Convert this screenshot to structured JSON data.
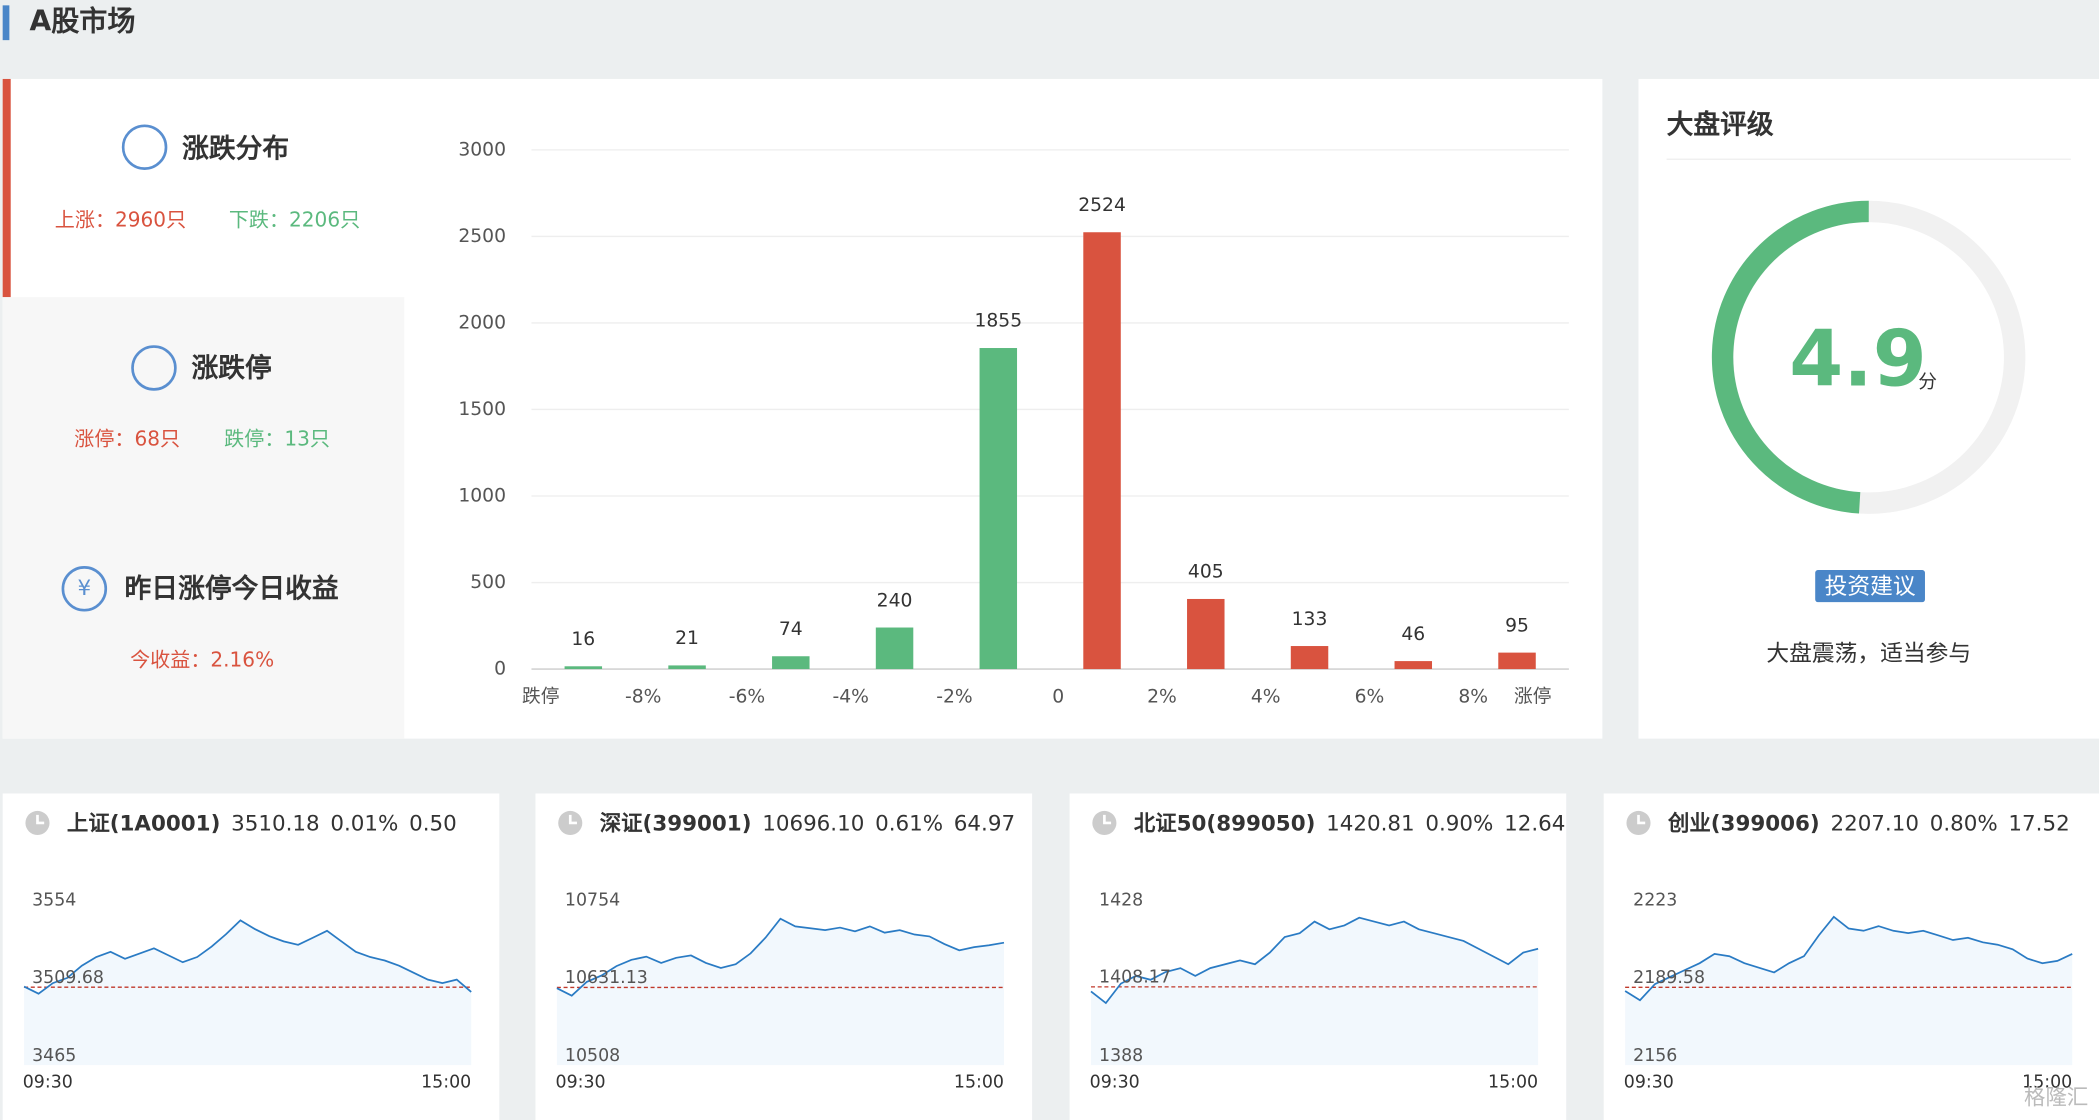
{
  "header": {
    "title": "A股市场"
  },
  "stats": [
    {
      "title": "涨跌分布",
      "items": [
        "上涨：2960只",
        "下跌：2206只"
      ]
    },
    {
      "title": "涨跌停",
      "items": [
        "涨停：68只",
        "跌停：13只"
      ]
    },
    {
      "title": "昨日涨停今日收益",
      "items": [
        "今收益：2.16%"
      ]
    }
  ],
  "chart_data": [
    {
      "type": "histogram",
      "bins": [
        "跌停",
        "-8%",
        "-6%",
        "-4%",
        "-2%",
        "0",
        "2%",
        "4%",
        "6%",
        "8%",
        "涨停"
      ],
      "values": [
        16,
        21,
        74,
        240,
        1855,
        2524,
        405,
        133,
        46,
        95
      ],
      "colors": [
        "#5bb97e",
        "#5bb97e",
        "#5bb97e",
        "#5bb97e",
        "#5bb97e",
        "#d9533f",
        "#d9533f",
        "#d9533f",
        "#d9533f",
        "#d9533f"
      ],
      "ylim": [
        0,
        3000
      ],
      "yticks": [
        0,
        500,
        1000,
        1500,
        2000,
        2500,
        3000
      ],
      "grid": true
    },
    {
      "type": "line",
      "title": "上证(1A0001)",
      "price": "3510.18",
      "pct": "0.01%",
      "change": "0.50",
      "x_labels": [
        "09:30",
        "15:00"
      ],
      "ylim": [
        3465,
        3554
      ],
      "yticks": [
        3465,
        3509.68,
        3554
      ],
      "baseline": 3509.68,
      "color": "#2a7bc4",
      "values": [
        3510,
        3506,
        3512,
        3515,
        3522,
        3527,
        3530,
        3526,
        3529,
        3532,
        3528,
        3524,
        3527,
        3533,
        3540,
        3548,
        3543,
        3539,
        3536,
        3534,
        3538,
        3542,
        3536,
        3530,
        3527,
        3525,
        3522,
        3518,
        3514,
        3512,
        3514,
        3507
      ]
    },
    {
      "type": "line",
      "title": "深证(399001)",
      "price": "10696.10",
      "pct": "0.61%",
      "change": "64.97",
      "x_labels": [
        "09:30",
        "15:00"
      ],
      "ylim": [
        10508,
        10754
      ],
      "yticks": [
        10508,
        10631.13,
        10754
      ],
      "baseline": 10631.13,
      "color": "#2a7bc4",
      "values": [
        10630,
        10618,
        10640,
        10650,
        10665,
        10675,
        10680,
        10670,
        10678,
        10682,
        10670,
        10662,
        10668,
        10685,
        10710,
        10740,
        10728,
        10725,
        10722,
        10726,
        10720,
        10728,
        10718,
        10722,
        10715,
        10712,
        10700,
        10690,
        10695,
        10698,
        10702
      ]
    },
    {
      "type": "line",
      "title": "北证50(899050)",
      "price": "1420.81",
      "pct": "0.90%",
      "change": "12.64",
      "x_labels": [
        "09:30",
        "15:00"
      ],
      "ylim": [
        1388,
        1428
      ],
      "yticks": [
        1388,
        1408.17,
        1428
      ],
      "baseline": 1408.17,
      "color": "#2a7bc4",
      "values": [
        1407,
        1404,
        1409,
        1411,
        1410,
        1412,
        1413,
        1411,
        1413,
        1414,
        1415,
        1414,
        1417,
        1421,
        1422,
        1425,
        1423,
        1424,
        1426,
        1425,
        1424,
        1425,
        1423,
        1422,
        1421,
        1420,
        1418,
        1416,
        1414,
        1417,
        1418
      ]
    },
    {
      "type": "line",
      "title": "创业(399006)",
      "price": "2207.10",
      "pct": "0.80%",
      "change": "17.52",
      "x_labels": [
        "09:30",
        "15:00"
      ],
      "ylim": [
        2156,
        2223
      ],
      "yticks": [
        2156,
        2189.58,
        2223
      ],
      "baseline": 2189.58,
      "color": "#2a7bc4",
      "values": [
        2188,
        2184,
        2191,
        2194,
        2197,
        2200,
        2204,
        2203,
        2200,
        2198,
        2196,
        2200,
        2203,
        2212,
        2220,
        2215,
        2214,
        2216,
        2214,
        2213,
        2214,
        2212,
        2210,
        2211,
        2209,
        2208,
        2206,
        2202,
        2200,
        2201,
        2204
      ]
    }
  ],
  "rating": {
    "title": "大盘评级",
    "score": 4.9,
    "unit": "分",
    "range": [
      0,
      10
    ],
    "color": "#5bb97e",
    "button": "投资建议",
    "advice": "大盘震荡，适当参与"
  },
  "watermark": "格隆汇"
}
